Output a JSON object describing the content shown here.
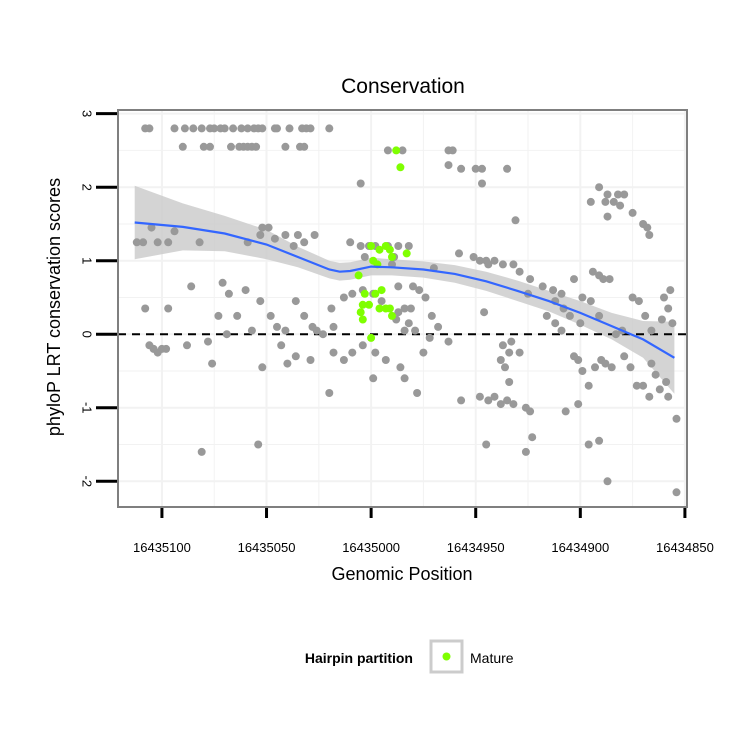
{
  "chart_data": {
    "type": "scatter",
    "title": "Conservation",
    "xlabel": "Genomic Position",
    "ylabel": "phyloP LRT conservation scores",
    "x_reversed": true,
    "xlim": [
      16435121,
      16434849
    ],
    "ylim": [
      -2.35,
      3.05
    ],
    "x_ticks": [
      16435100,
      16435050,
      16435000,
      16434950,
      16434900,
      16434850
    ],
    "x_tick_labels": [
      "16435100",
      "16435050",
      "16435000",
      "16434950",
      "16434900",
      "16434850"
    ],
    "y_ticks": [
      -2,
      -1,
      0,
      1,
      2,
      3
    ],
    "y_tick_labels": [
      "-2",
      "-1",
      "0",
      "1",
      "2",
      "3"
    ],
    "reference_line": {
      "y": 0,
      "style": "dashed"
    },
    "colors": {
      "other": "#999999",
      "mature": "#7fff00",
      "smooth": "#3366ff",
      "band": "#cccccc",
      "grid": "#f2f2f2",
      "panel_border": "#7f7f7f"
    },
    "legend": {
      "title": "Hairpin partition",
      "entries": [
        "Mature"
      ],
      "position": "bottom"
    },
    "series": [
      {
        "name": "Other",
        "points": [
          [
            16435108,
            2.8
          ],
          [
            16435106,
            2.8
          ],
          [
            16435094,
            2.8
          ],
          [
            16435089,
            2.8
          ],
          [
            16435085,
            2.8
          ],
          [
            16435081,
            2.8
          ],
          [
            16435077,
            2.8
          ],
          [
            16435075,
            2.8
          ],
          [
            16435072,
            2.8
          ],
          [
            16435070,
            2.8
          ],
          [
            16435066,
            2.8
          ],
          [
            16435062,
            2.8
          ],
          [
            16435059,
            2.8
          ],
          [
            16435056,
            2.8
          ],
          [
            16435054,
            2.8
          ],
          [
            16435052,
            2.8
          ],
          [
            16435046,
            2.8
          ],
          [
            16435045,
            2.8
          ],
          [
            16435039,
            2.8
          ],
          [
            16435033,
            2.8
          ],
          [
            16435031,
            2.8
          ],
          [
            16435029,
            2.8
          ],
          [
            16435020,
            2.8
          ],
          [
            16435090,
            2.55
          ],
          [
            16435080,
            2.55
          ],
          [
            16435077,
            2.55
          ],
          [
            16435067,
            2.55
          ],
          [
            16435063,
            2.55
          ],
          [
            16435061,
            2.55
          ],
          [
            16435059,
            2.55
          ],
          [
            16435057,
            2.55
          ],
          [
            16435055,
            2.55
          ],
          [
            16435041,
            2.55
          ],
          [
            16435034,
            2.55
          ],
          [
            16435032,
            2.55
          ],
          [
            16434992,
            2.5
          ],
          [
            16434985,
            2.5
          ],
          [
            16434963,
            2.5
          ],
          [
            16434961,
            2.5
          ],
          [
            16434963,
            2.3
          ],
          [
            16434957,
            2.25
          ],
          [
            16434950,
            2.25
          ],
          [
            16434947,
            2.25
          ],
          [
            16434935,
            2.25
          ],
          [
            16435005,
            2.05
          ],
          [
            16434947,
            2.05
          ],
          [
            16434891,
            2.0
          ],
          [
            16434887,
            1.9
          ],
          [
            16434882,
            1.9
          ],
          [
            16434879,
            1.9
          ],
          [
            16434895,
            1.8
          ],
          [
            16434888,
            1.8
          ],
          [
            16434884,
            1.8
          ],
          [
            16434881,
            1.75
          ],
          [
            16434887,
            1.6
          ],
          [
            16434931,
            1.55
          ],
          [
            16434875,
            1.65
          ],
          [
            16434870,
            1.5
          ],
          [
            16434868,
            1.45
          ],
          [
            16434867,
            1.35
          ],
          [
            16435105,
            1.45
          ],
          [
            16435094,
            1.4
          ],
          [
            16435052,
            1.45
          ],
          [
            16435049,
            1.45
          ],
          [
            16435053,
            1.35
          ],
          [
            16435041,
            1.35
          ],
          [
            16435035,
            1.35
          ],
          [
            16435027,
            1.35
          ],
          [
            16435046,
            1.3
          ],
          [
            16435032,
            1.25
          ],
          [
            16435112,
            1.25
          ],
          [
            16435109,
            1.25
          ],
          [
            16435102,
            1.25
          ],
          [
            16435097,
            1.25
          ],
          [
            16435082,
            1.25
          ],
          [
            16435059,
            1.25
          ],
          [
            16435037,
            1.2
          ],
          [
            16435010,
            1.25
          ],
          [
            16435005,
            1.2
          ],
          [
            16435001,
            1.2
          ],
          [
            16434998,
            1.2
          ],
          [
            16434992,
            1.2
          ],
          [
            16434987,
            1.2
          ],
          [
            16434982,
            1.2
          ],
          [
            16434989,
            1.05
          ],
          [
            16435003,
            1.05
          ],
          [
            16434990,
            0.95
          ],
          [
            16434970,
            0.9
          ],
          [
            16434951,
            1.05
          ],
          [
            16434958,
            1.1
          ],
          [
            16434948,
            1.0
          ],
          [
            16434945,
            1.0
          ],
          [
            16434944,
            0.95
          ],
          [
            16434941,
            1.0
          ],
          [
            16434937,
            0.95
          ],
          [
            16434932,
            0.95
          ],
          [
            16434929,
            0.85
          ],
          [
            16434924,
            0.75
          ],
          [
            16434918,
            0.65
          ],
          [
            16434913,
            0.6
          ],
          [
            16434909,
            0.55
          ],
          [
            16434894,
            0.85
          ],
          [
            16434891,
            0.8
          ],
          [
            16434889,
            0.75
          ],
          [
            16434886,
            0.75
          ],
          [
            16434903,
            0.75
          ],
          [
            16434899,
            0.5
          ],
          [
            16434895,
            0.45
          ],
          [
            16434925,
            0.55
          ],
          [
            16434912,
            0.45
          ],
          [
            16434908,
            0.35
          ],
          [
            16434905,
            0.25
          ],
          [
            16434916,
            0.25
          ],
          [
            16434912,
            0.15
          ],
          [
            16434909,
            0.05
          ],
          [
            16434900,
            0.15
          ],
          [
            16434891,
            0.25
          ],
          [
            16434883,
            0.0
          ],
          [
            16434880,
            0.05
          ],
          [
            16434875,
            0.5
          ],
          [
            16434872,
            0.45
          ],
          [
            16434869,
            0.25
          ],
          [
            16434866,
            0.05
          ],
          [
            16434860,
            0.5
          ],
          [
            16434857,
            0.6
          ],
          [
            16434858,
            0.35
          ],
          [
            16434861,
            0.2
          ],
          [
            16434856,
            0.15
          ],
          [
            16435086,
            0.65
          ],
          [
            16435071,
            0.7
          ],
          [
            16435068,
            0.55
          ],
          [
            16435060,
            0.6
          ],
          [
            16435053,
            0.45
          ],
          [
            16435048,
            0.25
          ],
          [
            16435045,
            0.1
          ],
          [
            16435041,
            0.05
          ],
          [
            16435036,
            0.45
          ],
          [
            16435032,
            0.25
          ],
          [
            16435028,
            0.1
          ],
          [
            16435023,
            0.0
          ],
          [
            16435026,
            0.05
          ],
          [
            16435018,
            0.1
          ],
          [
            16435019,
            0.35
          ],
          [
            16435013,
            0.5
          ],
          [
            16435009,
            0.55
          ],
          [
            16435004,
            0.6
          ],
          [
            16434999,
            0.55
          ],
          [
            16434995,
            0.45
          ],
          [
            16434987,
            0.65
          ],
          [
            16434980,
            0.65
          ],
          [
            16434984,
            0.35
          ],
          [
            16434988,
            0.2
          ],
          [
            16434982,
            0.15
          ],
          [
            16434984,
            0.05
          ],
          [
            16434979,
            0.05
          ],
          [
            16434977,
            0.6
          ],
          [
            16434974,
            0.5
          ],
          [
            16434971,
            0.25
          ],
          [
            16434968,
            0.1
          ],
          [
            16434981,
            0.35
          ],
          [
            16434987,
            0.3
          ],
          [
            16435108,
            0.35
          ],
          [
            16435097,
            0.35
          ],
          [
            16435073,
            0.25
          ],
          [
            16435069,
            0.0
          ],
          [
            16435057,
            0.05
          ],
          [
            16435104,
            -0.2
          ],
          [
            16435100,
            -0.2
          ],
          [
            16435098,
            -0.2
          ],
          [
            16435088,
            -0.15
          ],
          [
            16435076,
            -0.4
          ],
          [
            16435078,
            -0.1
          ],
          [
            16435064,
            0.25
          ],
          [
            16435052,
            -0.45
          ],
          [
            16435043,
            -0.15
          ],
          [
            16435040,
            -0.4
          ],
          [
            16435036,
            -0.3
          ],
          [
            16435029,
            -0.35
          ],
          [
            16435013,
            -0.35
          ],
          [
            16435018,
            -0.25
          ],
          [
            16435009,
            -0.25
          ],
          [
            16435004,
            -0.15
          ],
          [
            16434998,
            -0.25
          ],
          [
            16434993,
            -0.35
          ],
          [
            16434986,
            -0.45
          ],
          [
            16434984,
            -0.6
          ],
          [
            16435106,
            -0.15
          ],
          [
            16435102,
            -0.25
          ],
          [
            16434948,
            -0.85
          ],
          [
            16434944,
            -0.9
          ],
          [
            16434941,
            -0.85
          ],
          [
            16434938,
            -0.95
          ],
          [
            16434935,
            -0.9
          ],
          [
            16434932,
            -0.95
          ],
          [
            16434934,
            -0.65
          ],
          [
            16434936,
            -0.45
          ],
          [
            16434938,
            -0.35
          ],
          [
            16434934,
            -0.25
          ],
          [
            16434929,
            -0.25
          ],
          [
            16434933,
            -0.1
          ],
          [
            16434926,
            -1.0
          ],
          [
            16434924,
            -1.05
          ],
          [
            16434923,
            -1.4
          ],
          [
            16434926,
            -1.6
          ],
          [
            16434903,
            -0.3
          ],
          [
            16434901,
            -0.35
          ],
          [
            16434899,
            -0.5
          ],
          [
            16434896,
            -0.7
          ],
          [
            16434907,
            -1.05
          ],
          [
            16434901,
            -0.95
          ],
          [
            16434893,
            -0.45
          ],
          [
            16434890,
            -0.35
          ],
          [
            16434888,
            -0.4
          ],
          [
            16434885,
            -0.45
          ],
          [
            16434879,
            -0.3
          ],
          [
            16434876,
            -0.45
          ],
          [
            16434873,
            -0.7
          ],
          [
            16434870,
            -0.7
          ],
          [
            16434866,
            -0.4
          ],
          [
            16434864,
            -0.55
          ],
          [
            16434862,
            -0.75
          ],
          [
            16434858,
            -0.85
          ],
          [
            16434867,
            -0.85
          ],
          [
            16434859,
            -0.65
          ],
          [
            16434854,
            -1.15
          ],
          [
            16434854,
            -2.15
          ],
          [
            16434887,
            -2.0
          ],
          [
            16434896,
            -1.5
          ],
          [
            16434891,
            -1.45
          ],
          [
            16434978,
            -0.8
          ],
          [
            16434957,
            -0.9
          ],
          [
            16434945,
            -1.5
          ],
          [
            16434999,
            -0.6
          ],
          [
            16435020,
            -0.8
          ],
          [
            16435054,
            -1.5
          ],
          [
            16435081,
            -1.6
          ],
          [
            16434937,
            -0.15
          ],
          [
            16434963,
            -0.1
          ],
          [
            16434972,
            -0.05
          ],
          [
            16434975,
            -0.25
          ],
          [
            16434946,
            0.3
          ]
        ]
      },
      {
        "name": "Mature",
        "points": [
          [
            16434988,
            2.5
          ],
          [
            16434986,
            2.27
          ],
          [
            16435000,
            1.2
          ],
          [
            16434996,
            1.15
          ],
          [
            16434993,
            1.2
          ],
          [
            16434991,
            1.15
          ],
          [
            16434999,
            1.0
          ],
          [
            16434990,
            1.05
          ],
          [
            16434983,
            1.1
          ],
          [
            16435003,
            0.55
          ],
          [
            16435006,
            0.8
          ],
          [
            16435004,
            0.4
          ],
          [
            16435001,
            0.4
          ],
          [
            16435005,
            0.3
          ],
          [
            16434996,
            0.35
          ],
          [
            16434993,
            0.35
          ],
          [
            16434991,
            0.35
          ],
          [
            16434990,
            0.25
          ],
          [
            16435004,
            0.2
          ],
          [
            16434998,
            0.55
          ],
          [
            16434995,
            0.6
          ],
          [
            16435000,
            -0.05
          ],
          [
            16434997,
            0.95
          ]
        ]
      }
    ],
    "smooth": {
      "x": [
        16435113,
        16435090,
        16435070,
        16435050,
        16435035,
        16435020,
        16435015,
        16435010,
        16435000,
        16434990,
        16434975,
        16434960,
        16434945,
        16434930,
        16434915,
        16434900,
        16434885,
        16434870,
        16434855
      ],
      "y": [
        1.52,
        1.46,
        1.37,
        1.22,
        1.05,
        0.88,
        0.85,
        0.86,
        0.92,
        0.91,
        0.88,
        0.82,
        0.72,
        0.59,
        0.45,
        0.29,
        0.11,
        -0.07,
        -0.32
      ],
      "y_low": [
        1.02,
        1.14,
        1.13,
        1.02,
        0.91,
        0.76,
        0.73,
        0.74,
        0.8,
        0.8,
        0.77,
        0.7,
        0.59,
        0.45,
        0.31,
        0.13,
        -0.07,
        -0.32,
        -0.81
      ],
      "y_high": [
        2.02,
        1.78,
        1.61,
        1.42,
        1.19,
        1.0,
        0.97,
        0.98,
        1.04,
        1.02,
        0.99,
        0.94,
        0.85,
        0.73,
        0.59,
        0.45,
        0.29,
        0.18,
        0.17
      ]
    }
  }
}
